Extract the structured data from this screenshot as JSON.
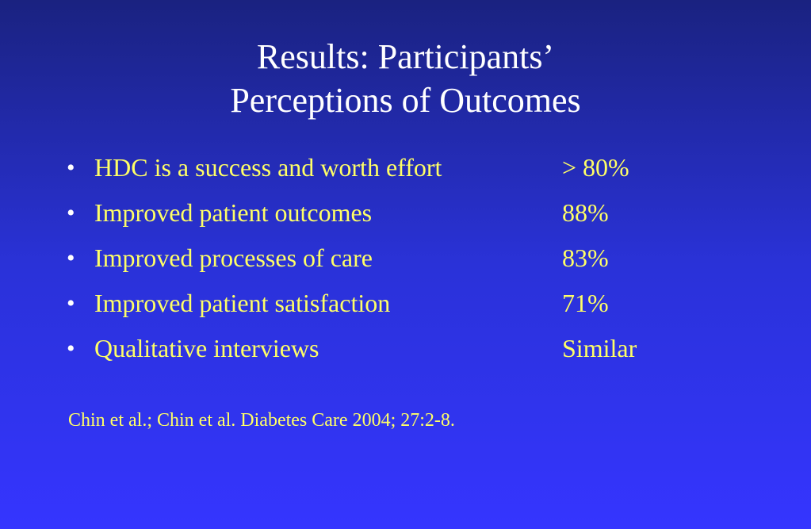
{
  "slide": {
    "title_line1": "Results: Participants’",
    "title_line2": "Perceptions of Outcomes",
    "bullet_symbol": "•",
    "bullets": [
      {
        "text": "HDC is a success and worth effort",
        "value": "> 80%"
      },
      {
        "text": "Improved patient outcomes",
        "value": "88%"
      },
      {
        "text": "Improved processes of care",
        "value": "83%"
      },
      {
        "text": "Improved patient satisfaction",
        "value": "71%"
      },
      {
        "text": "Qualitative interviews",
        "value": "Similar"
      }
    ],
    "citation": "Chin et al.; Chin et al. Diabetes Care 2004; 27:2-8."
  },
  "colors": {
    "background_top": "#1a2280",
    "background_bottom": "#3535ff",
    "title": "#ffffff",
    "body_text": "#ffff66"
  }
}
